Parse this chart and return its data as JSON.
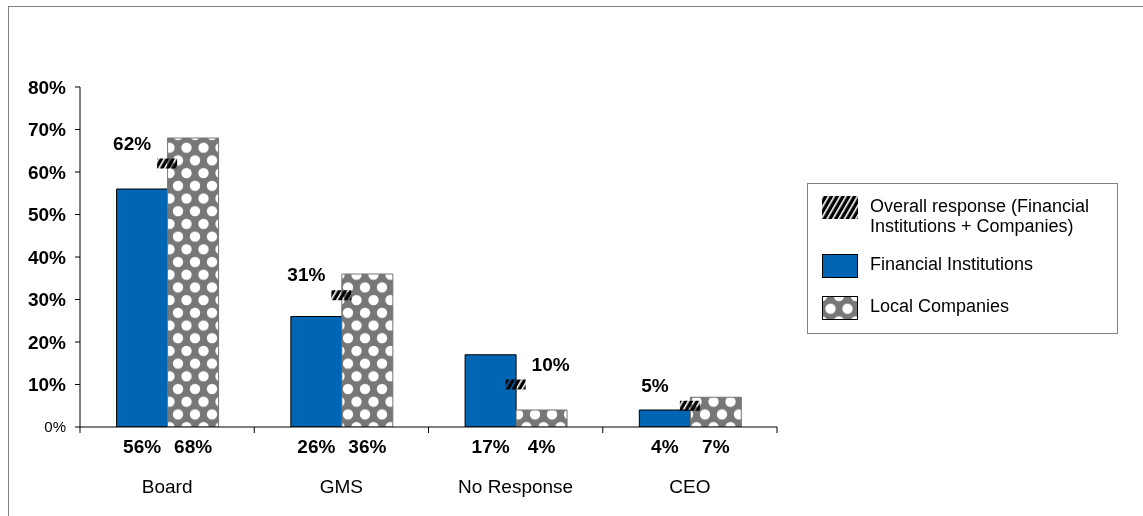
{
  "chart_data": {
    "type": "bar",
    "categories": [
      "Board",
      "GMS",
      "No Response",
      "CEO"
    ],
    "series": [
      {
        "name": "Overall response (Financial Institutions + Companies)",
        "type": "scatter",
        "marker": "square",
        "color": "#000000",
        "values": [
          62,
          31,
          10,
          5
        ],
        "value_labels": [
          "62%",
          "31%",
          "10%",
          "5%"
        ]
      },
      {
        "name": "Financial Institutions",
        "color": "#0066b3",
        "values": [
          56,
          26,
          17,
          4
        ],
        "value_labels": [
          "56%",
          "26%",
          "17%",
          "4%"
        ]
      },
      {
        "name": "Local Companies",
        "color": "#777777",
        "values": [
          68,
          36,
          4,
          7
        ],
        "value_labels": [
          "68%",
          "36%",
          "4%",
          "7%"
        ]
      }
    ],
    "ylim": [
      0,
      80
    ],
    "yticks": [
      {
        "value": 0,
        "label": "0%"
      },
      {
        "value": 10,
        "label": "10%"
      },
      {
        "value": 20,
        "label": "20%"
      },
      {
        "value": 30,
        "label": "30%"
      },
      {
        "value": 40,
        "label": "40%"
      },
      {
        "value": 50,
        "label": "50%"
      },
      {
        "value": 60,
        "label": "60%"
      },
      {
        "value": 70,
        "label": "70%"
      },
      {
        "value": 80,
        "label": "80%"
      }
    ],
    "legend": "right"
  }
}
